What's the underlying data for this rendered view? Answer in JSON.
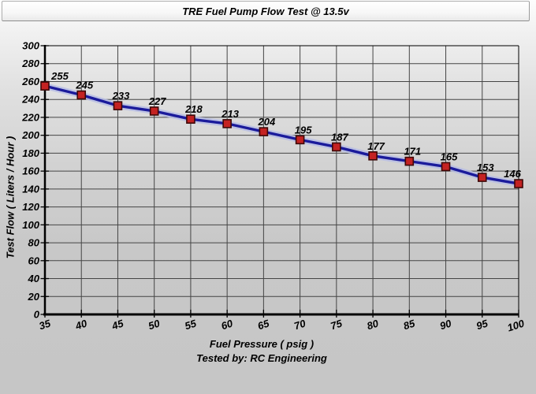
{
  "chart_data": {
    "type": "line",
    "title": "TRE Fuel Pump Flow Test @ 13.5v",
    "xlabel": "Fuel Pressure ( psig )",
    "ylabel": "Test Flow ( Liters / Hour )",
    "footnote": "Tested by: RC Engineering",
    "x": [
      35,
      40,
      45,
      50,
      55,
      60,
      65,
      70,
      75,
      80,
      85,
      90,
      95,
      100
    ],
    "series": [
      {
        "name": "Test Flow",
        "values": [
          255,
          245,
          233,
          227,
          218,
          213,
          204,
          195,
          187,
          177,
          171,
          165,
          153,
          146
        ]
      }
    ],
    "point_labels": [
      "255",
      "245",
      "233",
      "227",
      "218",
      "213",
      "204",
      "195",
      "187",
      "177",
      "171",
      "165",
      "153",
      "146"
    ],
    "x_ticks": [
      35,
      40,
      45,
      50,
      55,
      60,
      65,
      70,
      75,
      80,
      85,
      90,
      95,
      100
    ],
    "y_ticks": [
      0,
      20,
      40,
      60,
      80,
      100,
      120,
      140,
      160,
      180,
      200,
      220,
      240,
      260,
      280,
      300
    ],
    "xlim": [
      35,
      100
    ],
    "ylim": [
      0,
      300
    ],
    "grid": true,
    "legend_position": "none",
    "colors": {
      "line": "#1b1b9b",
      "line_halo": "#b7bde4",
      "marker_fill": "#c42222",
      "marker_border": "#3d0808",
      "grid": "#454545",
      "axis": "#000000",
      "text": "#000000",
      "background_top": "#fdfdfd",
      "background_bottom": "#c6c6c6"
    }
  }
}
